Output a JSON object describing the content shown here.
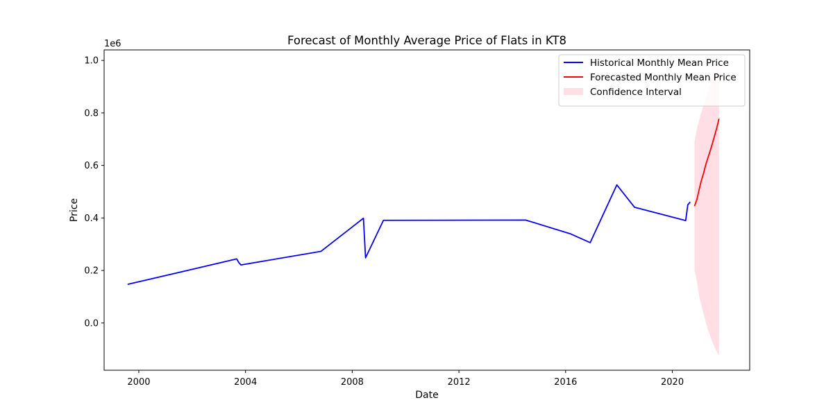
{
  "chart_data": {
    "type": "line",
    "title": "Forecast of Monthly Average Price of Flats in KT8",
    "xlabel": "Date",
    "ylabel": "Price",
    "y_offset_label": "1e6",
    "y_scale_factor": 1000000,
    "xlim": [
      1998.7,
      2022.9
    ],
    "ylim": [
      -180000,
      1040000
    ],
    "x_ticks": [
      2000,
      2004,
      2008,
      2012,
      2016,
      2020
    ],
    "x_tick_labels": [
      "2000",
      "2004",
      "2008",
      "2012",
      "2016",
      "2020"
    ],
    "y_ticks": [
      0,
      200000,
      400000,
      600000,
      800000,
      1000000
    ],
    "y_tick_labels": [
      "0.0",
      "0.2",
      "0.4",
      "0.6",
      "0.8",
      "1.0"
    ],
    "grid": false,
    "legend_position": "top-right",
    "series": [
      {
        "name": "Historical Monthly Mean Price",
        "color": "#0000ff",
        "kind": "line",
        "x": [
          1999.58,
          2003.67,
          2003.75,
          2003.83,
          2006.83,
          2008.42,
          2008.5,
          2009.17,
          2014.5,
          2016.17,
          2016.92,
          2017.92,
          2018.58,
          2020.5,
          2020.58,
          2020.67
        ],
        "y": [
          147000,
          244000,
          230000,
          221000,
          273000,
          399000,
          248000,
          391000,
          392000,
          340000,
          306000,
          526000,
          441000,
          390000,
          450000,
          461000
        ]
      },
      {
        "name": "Forecasted Monthly Mean Price",
        "color": "#ff0000",
        "kind": "line",
        "x": [
          2020.83,
          2020.92,
          2021.0,
          2021.08,
          2021.17,
          2021.25,
          2021.33,
          2021.42,
          2021.5,
          2021.58,
          2021.67,
          2021.75
        ],
        "y": [
          445000,
          470000,
          506000,
          540000,
          570000,
          602000,
          628000,
          656000,
          683000,
          712000,
          745000,
          778000
        ]
      },
      {
        "name": "Confidence Interval",
        "color": "#ffc0cb",
        "kind": "band",
        "x": [
          2020.83,
          2020.92,
          2021.0,
          2021.08,
          2021.17,
          2021.25,
          2021.33,
          2021.42,
          2021.5,
          2021.58,
          2021.67,
          2021.75
        ],
        "lower": [
          200000,
          160000,
          105000,
          70000,
          35000,
          5000,
          -25000,
          -50000,
          -72000,
          -92000,
          -110000,
          -125000
        ],
        "upper": [
          690000,
          740000,
          770000,
          800000,
          828000,
          855000,
          880000,
          905000,
          925000,
          945000,
          960000,
          975000
        ]
      }
    ]
  }
}
